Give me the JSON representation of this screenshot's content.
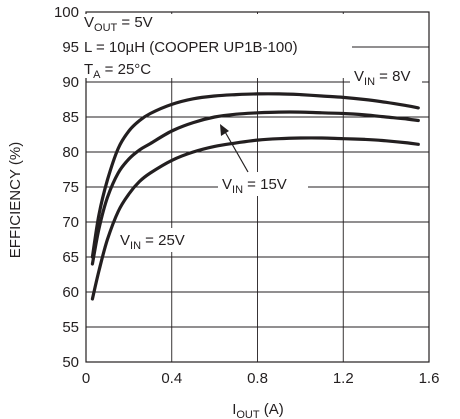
{
  "chart_data": {
    "type": "line",
    "xlabel_main": "I",
    "xlabel_sub": "OUT",
    "xlabel_rest": " (A)",
    "ylabel": "EFFICIENCY (%)",
    "xlim": [
      0,
      1.6
    ],
    "ylim": [
      50,
      100
    ],
    "grid": true,
    "xticks": [
      "0",
      "0.4",
      "0.8",
      "1.2",
      "1.6"
    ],
    "yticks": [
      "50",
      "55",
      "60",
      "65",
      "70",
      "75",
      "80",
      "85",
      "90",
      "95",
      "100"
    ],
    "conditions": [
      {
        "main": "V",
        "sub": "OUT",
        "rest": " = 5V"
      },
      {
        "main": "L = 10µH (COOPER UP1B-100)",
        "sub": "",
        "rest": ""
      },
      {
        "main": "T",
        "sub": "A",
        "rest": " = 25°C"
      }
    ],
    "series": [
      {
        "name_main": "V",
        "name_sub": "IN",
        "name_rest": " = 8V",
        "x": [
          0.03,
          0.06,
          0.1,
          0.15,
          0.2,
          0.25,
          0.3,
          0.4,
          0.5,
          0.6,
          0.7,
          0.8,
          0.9,
          1.0,
          1.1,
          1.2,
          1.3,
          1.4,
          1.5,
          1.55
        ],
        "y": [
          65.0,
          71.0,
          76.0,
          80.5,
          83.0,
          84.5,
          85.5,
          86.8,
          87.6,
          88.0,
          88.2,
          88.3,
          88.3,
          88.2,
          88.0,
          87.8,
          87.5,
          87.1,
          86.6,
          86.3
        ]
      },
      {
        "name_main": "V",
        "name_sub": "IN",
        "name_rest": " = 15V",
        "x": [
          0.03,
          0.06,
          0.1,
          0.15,
          0.2,
          0.25,
          0.3,
          0.4,
          0.5,
          0.6,
          0.7,
          0.8,
          0.9,
          1.0,
          1.1,
          1.2,
          1.3,
          1.4,
          1.5,
          1.55
        ],
        "y": [
          64.0,
          69.0,
          73.5,
          77.0,
          79.0,
          80.3,
          81.2,
          83.0,
          84.2,
          85.0,
          85.4,
          85.6,
          85.7,
          85.7,
          85.6,
          85.5,
          85.3,
          85.0,
          84.7,
          84.5
        ]
      },
      {
        "name_main": "V",
        "name_sub": "IN",
        "name_rest": " = 25V",
        "x": [
          0.03,
          0.06,
          0.1,
          0.15,
          0.2,
          0.25,
          0.3,
          0.4,
          0.5,
          0.6,
          0.7,
          0.8,
          0.9,
          1.0,
          1.1,
          1.2,
          1.3,
          1.4,
          1.5,
          1.55
        ],
        "y": [
          59.0,
          63.0,
          67.5,
          71.5,
          74.0,
          75.8,
          77.0,
          78.8,
          80.0,
          80.8,
          81.3,
          81.7,
          81.9,
          82.0,
          82.0,
          81.9,
          81.8,
          81.6,
          81.3,
          81.1
        ]
      }
    ]
  }
}
